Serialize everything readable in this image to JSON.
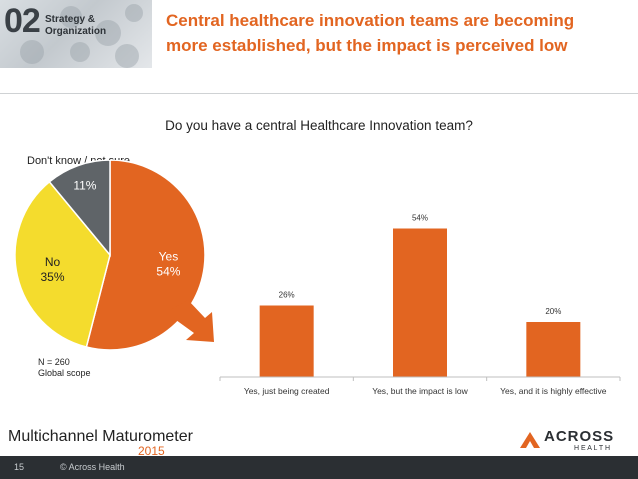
{
  "header": {
    "section_number": "02",
    "section_label_1": "Strategy &",
    "section_label_2": "Organization",
    "title_line_1": "Central healthcare innovation teams are becoming",
    "title_line_2": "more established, but the impact is perceived low"
  },
  "question": "Do you have a central Healthcare Innovation team?",
  "pie_note_1": "N = 260",
  "pie_note_2": "Global scope",
  "chart_data": [
    {
      "type": "pie",
      "slices": [
        {
          "label": "Yes",
          "value": 54,
          "value_label": "54%",
          "color": "#e26521"
        },
        {
          "label": "No",
          "value": 35,
          "value_label": "35%",
          "color": "#f4dc2d"
        },
        {
          "label": "Don't know / not sure",
          "value": 11,
          "value_label": "11%",
          "color": "#5f6468"
        }
      ]
    },
    {
      "type": "bar",
      "categories": [
        "Yes, just being created",
        "Yes, but the impact is low",
        "Yes, and it is highly effective"
      ],
      "values": [
        26,
        54,
        20
      ],
      "value_labels": [
        "26%",
        "54%",
        "20%"
      ],
      "color": "#e26521",
      "ylim": [
        0,
        60
      ]
    }
  ],
  "footer": {
    "brand_left": "Multichannel Maturometer",
    "brand_year": "2015",
    "brand_right_1": "ACROSS",
    "brand_right_2": "H E A L T H",
    "page_number": "15",
    "copyright": "© Across Health"
  },
  "colors": {
    "accent": "#e26521",
    "arrow": "#e26521"
  }
}
